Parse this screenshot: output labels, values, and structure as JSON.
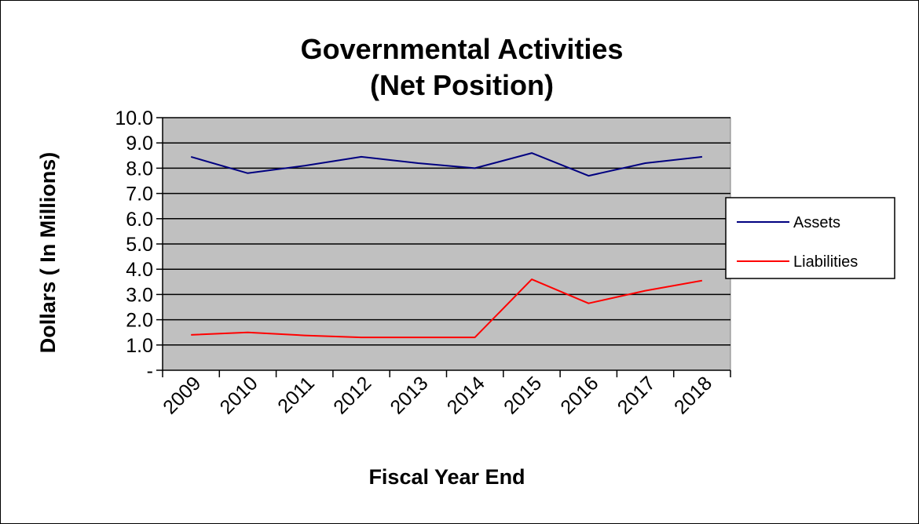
{
  "chart_data": {
    "type": "line",
    "title": "Governmental Activities",
    "subtitle": "(Net Position)",
    "xlabel": "Fiscal Year End",
    "ylabel": "Dollars ( In Millions)",
    "categories": [
      "2009",
      "2010",
      "2011",
      "2012",
      "2013",
      "2014",
      "2015",
      "2016",
      "2017",
      "2018"
    ],
    "ylim": [
      0,
      10
    ],
    "yticks": [
      0,
      1,
      2,
      3,
      4,
      5,
      6,
      7,
      8,
      9,
      10
    ],
    "ytick_labels": [
      "-",
      "1.0",
      "2.0",
      "3.0",
      "4.0",
      "5.0",
      "6.0",
      "7.0",
      "8.0",
      "9.0",
      "10.0"
    ],
    "grid": true,
    "legend_position": "right",
    "plot_background": "#c0c0c0",
    "series": [
      {
        "name": "Assets",
        "color": "#000080",
        "values": [
          8.45,
          7.8,
          8.1,
          8.45,
          8.2,
          8.0,
          8.6,
          7.7,
          8.2,
          8.45
        ]
      },
      {
        "name": "Liabilities",
        "color": "#ff0000",
        "values": [
          1.4,
          1.5,
          1.38,
          1.3,
          1.3,
          1.3,
          3.6,
          2.65,
          3.15,
          3.55
        ]
      }
    ]
  }
}
